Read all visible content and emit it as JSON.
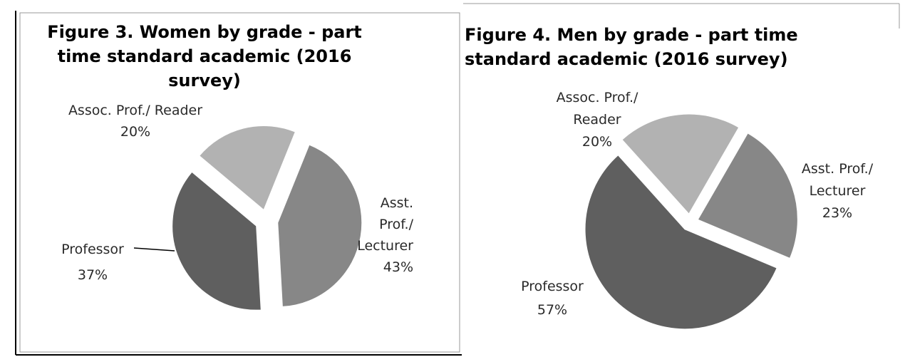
{
  "chart_data": [
    {
      "type": "pie",
      "title": "Figure 3. Women by grade - part time standard academic (2016 survey)",
      "categories": [
        "Asst. Prof./ Lecturer",
        "Professor",
        "Assoc. Prof./ Reader"
      ],
      "values": [
        43,
        37,
        20
      ],
      "value_labels": [
        "43%",
        "37%",
        "20%"
      ],
      "colors": [
        "#878787",
        "#5f5f5f",
        "#b2b2b2"
      ]
    },
    {
      "type": "pie",
      "title": "Figure 4. Men by grade - part time standard academic (2016 survey)",
      "categories": [
        "Asst. Prof./ Lecturer",
        "Professor",
        "Assoc. Prof./ Reader"
      ],
      "values": [
        23,
        57,
        20
      ],
      "value_labels": [
        "23%",
        "57%",
        "20%"
      ],
      "colors": [
        "#878787",
        "#5f5f5f",
        "#b2b2b2"
      ]
    }
  ]
}
